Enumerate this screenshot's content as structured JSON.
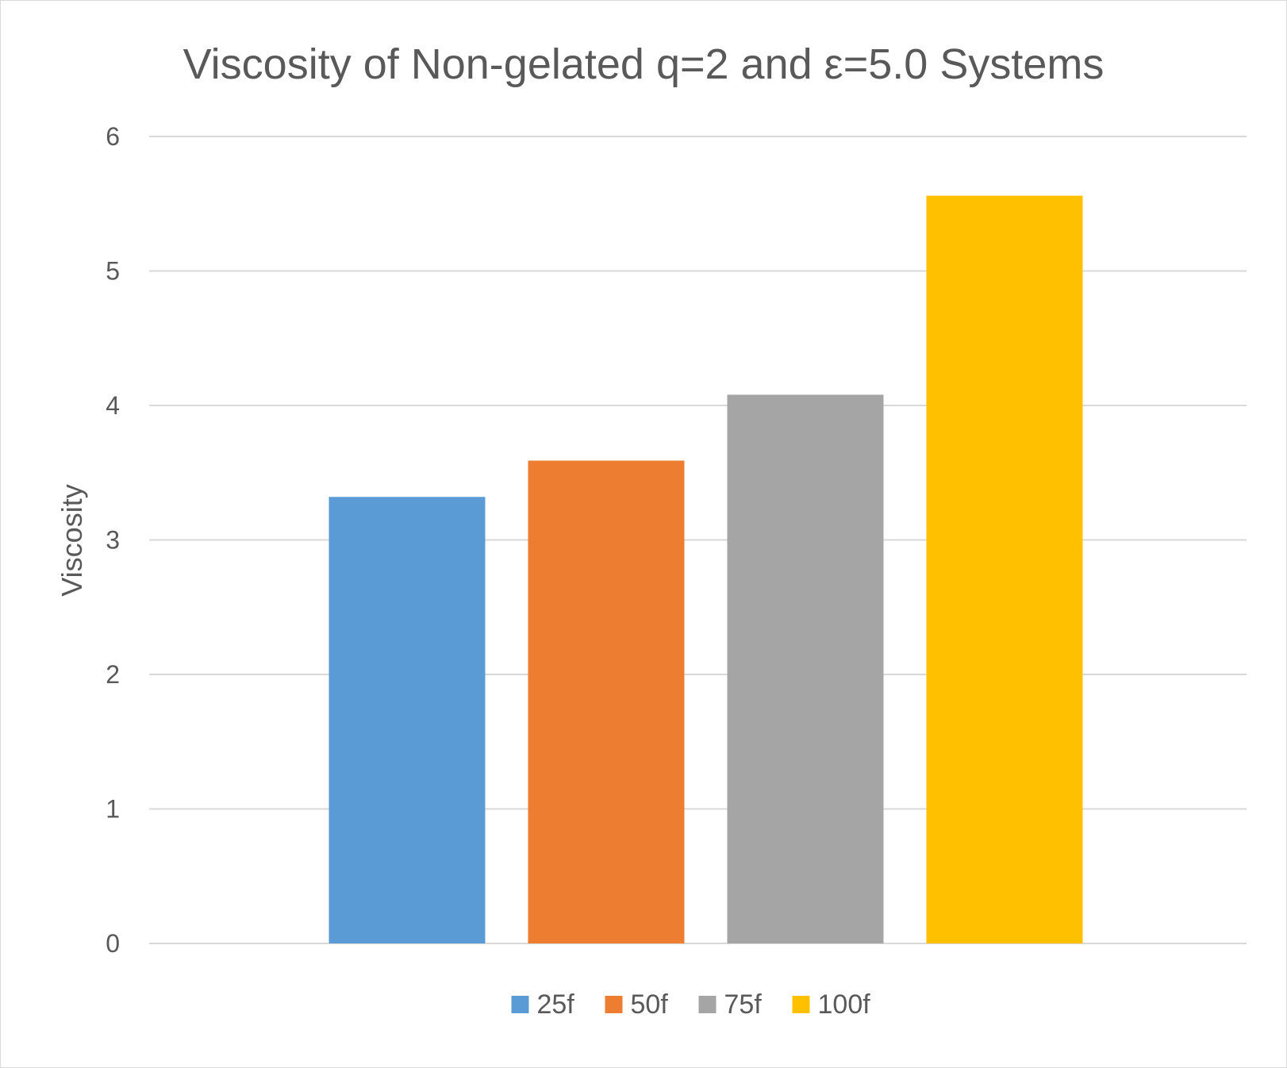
{
  "chart_data": {
    "type": "bar",
    "title": "Viscosity of Non-gelated q=2 and ε=5.0 Systems",
    "xlabel": "",
    "ylabel": "Viscosity",
    "ylim": [
      0,
      6
    ],
    "yticks": [
      "0",
      "1",
      "2",
      "3",
      "4",
      "5",
      "6"
    ],
    "grid": true,
    "legend_position": "bottom",
    "series": [
      {
        "name": "25f",
        "value": 3.32,
        "color": "#5b9bd5"
      },
      {
        "name": "50f",
        "value": 3.59,
        "color": "#ed7d31"
      },
      {
        "name": "75f",
        "value": 4.08,
        "color": "#a5a5a5"
      },
      {
        "name": "100f",
        "value": 5.56,
        "color": "#ffc000"
      }
    ]
  }
}
